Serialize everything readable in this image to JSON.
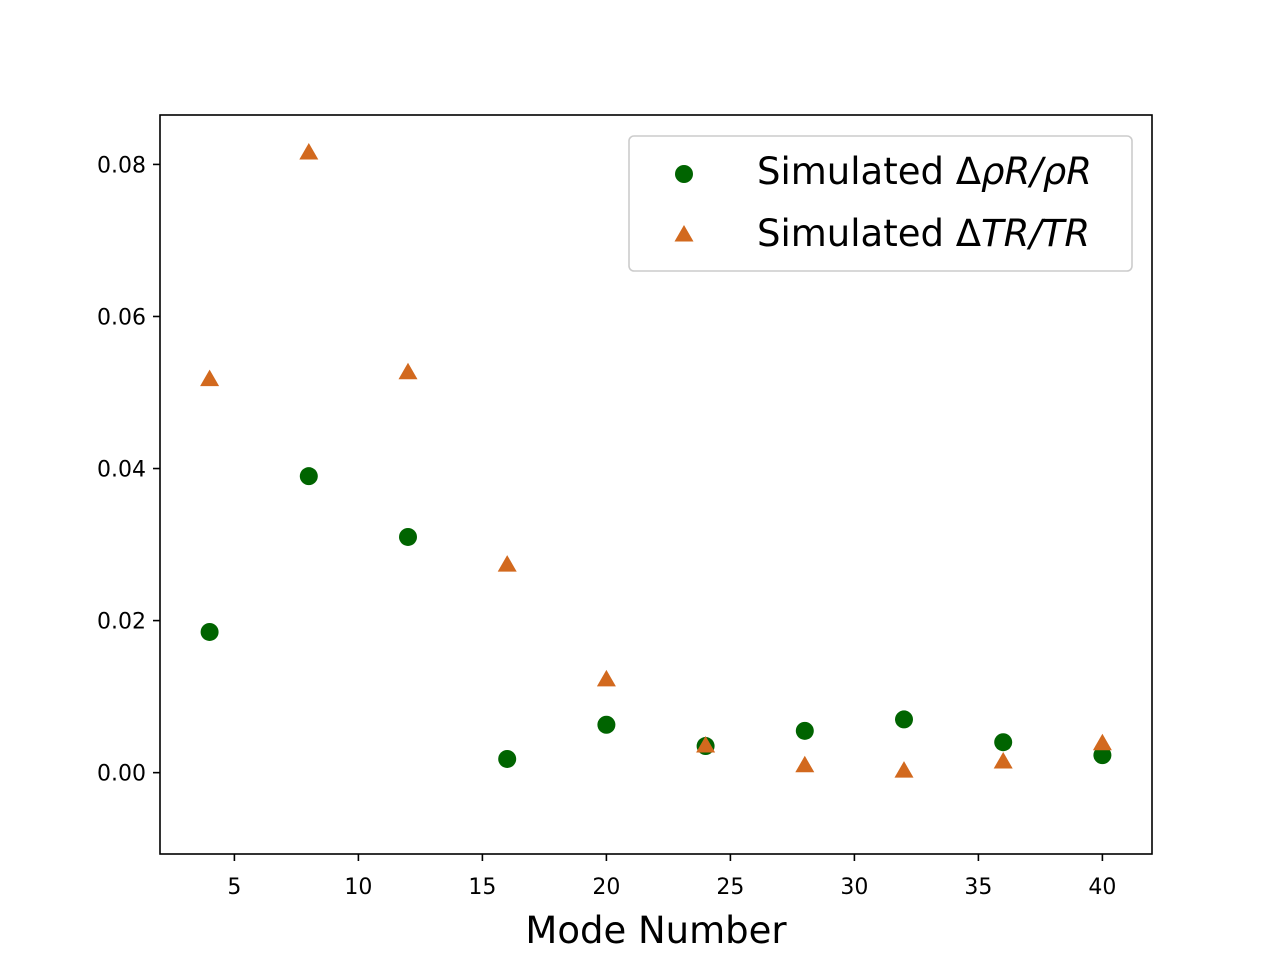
{
  "colors": {
    "series_rho": "#006400",
    "series_tr": "#d2691e",
    "axis": "#000000",
    "background": "#ffffff"
  },
  "chart_data": {
    "type": "scatter",
    "title": "",
    "xlabel": "Mode Number",
    "ylabel": "",
    "xlim": [
      2,
      42
    ],
    "ylim": [
      -0.0107,
      0.0865
    ],
    "x_ticks": [
      5,
      10,
      15,
      20,
      25,
      30,
      35,
      40
    ],
    "x_tick_labels": [
      "5",
      "10",
      "15",
      "20",
      "25",
      "30",
      "35",
      "40"
    ],
    "y_ticks": [
      0.0,
      0.02,
      0.04,
      0.06,
      0.08
    ],
    "y_tick_labels": [
      "0.00",
      "0.02",
      "0.04",
      "0.06",
      "0.08"
    ],
    "grid": false,
    "legend_position": "top-right",
    "series": [
      {
        "name_prefix": "Simulated Δ",
        "name_math": "ρR/ρR",
        "marker": "circle",
        "color": "#006400",
        "x": [
          4,
          8,
          12,
          16,
          20,
          24,
          28,
          32,
          36,
          40
        ],
        "y": [
          0.0185,
          0.039,
          0.031,
          0.0018,
          0.0063,
          0.0035,
          0.0055,
          0.007,
          0.004,
          0.0023
        ]
      },
      {
        "name_prefix": "Simulated Δ",
        "name_math": "TR/TR",
        "marker": "triangle",
        "color": "#d2691e",
        "x": [
          4,
          8,
          12,
          16,
          20,
          24,
          28,
          32,
          36,
          40
        ],
        "y": [
          0.0517,
          0.0815,
          0.0526,
          0.0273,
          0.0122,
          0.0035,
          0.0009,
          0.0002,
          0.0014,
          0.0038
        ]
      }
    ]
  }
}
